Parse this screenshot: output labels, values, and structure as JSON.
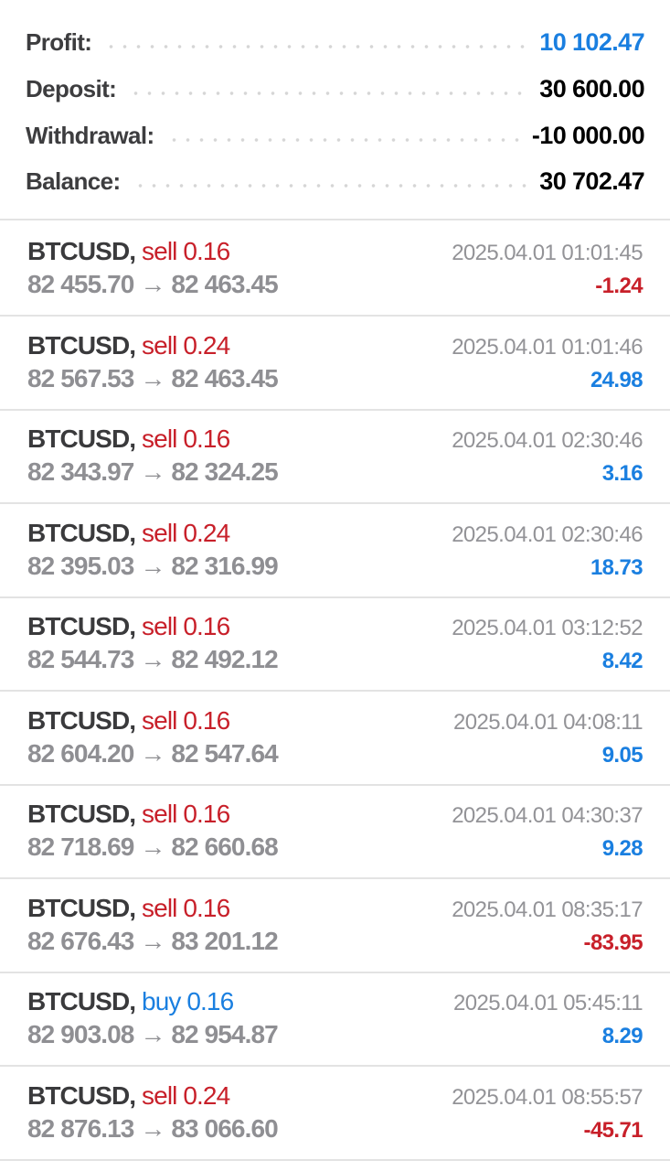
{
  "summary": {
    "profit": {
      "label": "Profit:",
      "value": "10 102.47"
    },
    "deposit": {
      "label": "Deposit:",
      "value": "30 600.00"
    },
    "withdrawal": {
      "label": "Withdrawal:",
      "value": "-10 000.00"
    },
    "balance": {
      "label": "Balance:",
      "value": "30 702.47"
    }
  },
  "colors": {
    "positive": "#1a7fe0",
    "negative": "#c8202a",
    "text": "#3a3a3c",
    "muted": "#8f8f93"
  },
  "deals": [
    {
      "symbol": "BTCUSD,",
      "type": "sell",
      "volume": "sell 0.16",
      "open": "82 455.70",
      "arrow": "→",
      "close": "82 463.45",
      "time": "2025.04.01 01:01:45",
      "profit": "-1.24"
    },
    {
      "symbol": "BTCUSD,",
      "type": "sell",
      "volume": "sell 0.24",
      "open": "82 567.53",
      "arrow": "→",
      "close": "82 463.45",
      "time": "2025.04.01 01:01:46",
      "profit": "24.98"
    },
    {
      "symbol": "BTCUSD,",
      "type": "sell",
      "volume": "sell 0.16",
      "open": "82 343.97",
      "arrow": "→",
      "close": "82 324.25",
      "time": "2025.04.01 02:30:46",
      "profit": "3.16"
    },
    {
      "symbol": "BTCUSD,",
      "type": "sell",
      "volume": "sell 0.24",
      "open": "82 395.03",
      "arrow": "→",
      "close": "82 316.99",
      "time": "2025.04.01 02:30:46",
      "profit": "18.73"
    },
    {
      "symbol": "BTCUSD,",
      "type": "sell",
      "volume": "sell 0.16",
      "open": "82 544.73",
      "arrow": "→",
      "close": "82 492.12",
      "time": "2025.04.01 03:12:52",
      "profit": "8.42"
    },
    {
      "symbol": "BTCUSD,",
      "type": "sell",
      "volume": "sell 0.16",
      "open": "82 604.20",
      "arrow": "→",
      "close": "82 547.64",
      "time": "2025.04.01 04:08:11",
      "profit": "9.05"
    },
    {
      "symbol": "BTCUSD,",
      "type": "sell",
      "volume": "sell 0.16",
      "open": "82 718.69",
      "arrow": "→",
      "close": "82 660.68",
      "time": "2025.04.01 04:30:37",
      "profit": "9.28"
    },
    {
      "symbol": "BTCUSD,",
      "type": "sell",
      "volume": "sell 0.16",
      "open": "82 676.43",
      "arrow": "→",
      "close": "83 201.12",
      "time": "2025.04.01 08:35:17",
      "profit": "-83.95"
    },
    {
      "symbol": "BTCUSD,",
      "type": "buy",
      "volume": "buy 0.16",
      "open": "82 903.08",
      "arrow": "→",
      "close": "82 954.87",
      "time": "2025.04.01 05:45:11",
      "profit": "8.29"
    },
    {
      "symbol": "BTCUSD,",
      "type": "sell",
      "volume": "sell 0.24",
      "open": "82 876.13",
      "arrow": "→",
      "close": "83 066.60",
      "time": "2025.04.01 08:55:57",
      "profit": "-45.71"
    }
  ]
}
